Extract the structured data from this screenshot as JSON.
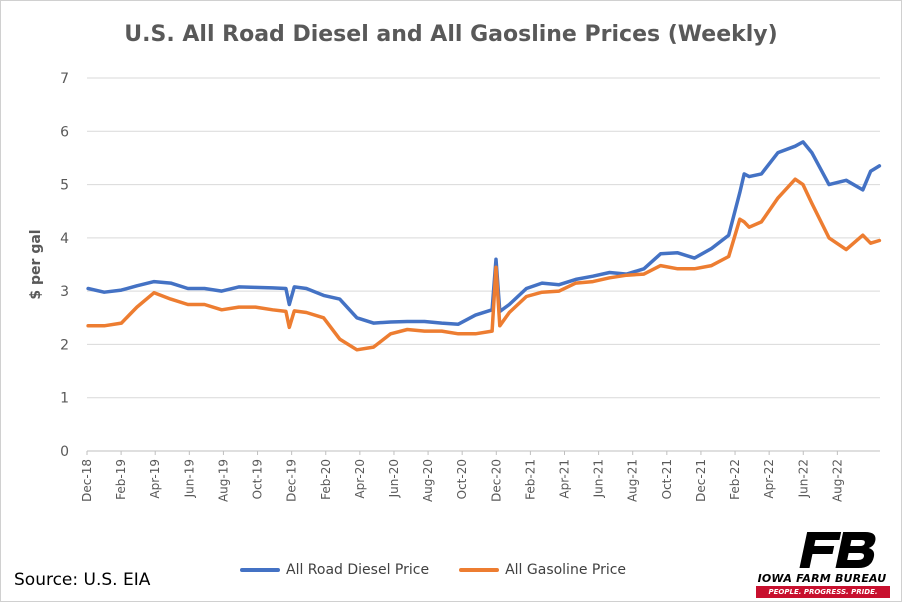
{
  "chart_data": {
    "type": "line",
    "title": "U.S. All Road Diesel and All Gaosline Prices (Weekly)",
    "xlabel": "",
    "ylabel": "$ per gal",
    "ylim": [
      0,
      7
    ],
    "yticks": [
      0,
      1,
      2,
      3,
      4,
      5,
      6,
      7
    ],
    "grid": true,
    "legend_position": "bottom",
    "x_tick_labels": [
      "Dec-18",
      "Feb-19",
      "Apr-19",
      "Jun-19",
      "Aug-19",
      "Oct-19",
      "Dec-19",
      "Feb-20",
      "Apr-20",
      "Jun-20",
      "Aug-20",
      "Oct-20",
      "Dec-20",
      "Feb-21",
      "Apr-21",
      "Jun-21",
      "Aug-21",
      "Oct-21",
      "Dec-21",
      "Feb-22",
      "Apr-22",
      "Jun-22",
      "Aug-22"
    ],
    "x": [
      "2018-12-03",
      "2019-01-01",
      "2019-02-01",
      "2019-03-01",
      "2019-04-01",
      "2019-05-01",
      "2019-06-01",
      "2019-07-01",
      "2019-08-01",
      "2019-09-01",
      "2019-10-01",
      "2019-11-01",
      "2019-11-25",
      "2019-12-01",
      "2019-12-10",
      "2020-01-01",
      "2020-02-01",
      "2020-03-01",
      "2020-04-01",
      "2020-05-01",
      "2020-06-01",
      "2020-07-01",
      "2020-08-01",
      "2020-09-01",
      "2020-10-01",
      "2020-11-01",
      "2020-12-01",
      "2020-12-08",
      "2020-12-15",
      "2021-01-01",
      "2021-02-01",
      "2021-03-01",
      "2021-04-01",
      "2021-05-01",
      "2021-06-01",
      "2021-07-01",
      "2021-08-01",
      "2021-09-01",
      "2021-10-01",
      "2021-11-01",
      "2021-12-01",
      "2022-01-01",
      "2022-02-01",
      "2022-02-21",
      "2022-03-01",
      "2022-03-10",
      "2022-04-01",
      "2022-05-01",
      "2022-06-01",
      "2022-06-15",
      "2022-07-01",
      "2022-08-01",
      "2022-09-01",
      "2022-10-01",
      "2022-10-15",
      "2022-10-31"
    ],
    "series": [
      {
        "name": "All Road Diesel Price",
        "color": "#4472c4",
        "values": [
          3.05,
          2.98,
          3.02,
          3.1,
          3.18,
          3.15,
          3.05,
          3.05,
          3.0,
          3.08,
          3.07,
          3.06,
          3.05,
          2.75,
          3.08,
          3.05,
          2.92,
          2.85,
          2.5,
          2.4,
          2.42,
          2.43,
          2.43,
          2.4,
          2.38,
          2.55,
          2.65,
          3.6,
          2.62,
          2.75,
          3.05,
          3.15,
          3.12,
          3.22,
          3.28,
          3.35,
          3.32,
          3.42,
          3.7,
          3.72,
          3.62,
          3.8,
          4.05,
          4.85,
          5.2,
          5.15,
          5.2,
          5.6,
          5.72,
          5.8,
          5.6,
          5.0,
          5.08,
          4.9,
          5.25,
          5.35
        ]
      },
      {
        "name": "All Gasoline Price",
        "color": "#ed7d31",
        "values": [
          2.35,
          2.35,
          2.4,
          2.7,
          2.97,
          2.85,
          2.75,
          2.75,
          2.65,
          2.7,
          2.7,
          2.65,
          2.62,
          2.32,
          2.63,
          2.6,
          2.5,
          2.1,
          1.9,
          1.95,
          2.2,
          2.28,
          2.25,
          2.25,
          2.2,
          2.2,
          2.25,
          3.45,
          2.35,
          2.6,
          2.9,
          2.98,
          3.0,
          3.15,
          3.18,
          3.25,
          3.3,
          3.32,
          3.48,
          3.42,
          3.42,
          3.48,
          3.65,
          4.35,
          4.3,
          4.2,
          4.3,
          4.75,
          5.1,
          5.0,
          4.65,
          4.0,
          3.78,
          4.05,
          3.9,
          3.95
        ]
      }
    ]
  },
  "source": "Source: U.S. EIA",
  "logo": {
    "name": "IOWA FARM BUREAU",
    "tagline": "PEOPLE. PROGRESS. PRIDE.",
    "color": "#c8102e"
  }
}
